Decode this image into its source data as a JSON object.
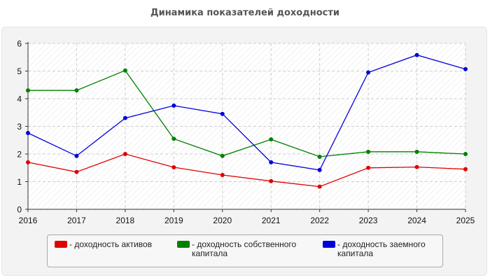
{
  "chart_data": {
    "type": "line",
    "title": "Динамика показателей доходности",
    "xlabel": "",
    "ylabel": "",
    "categories": [
      "2016",
      "2017",
      "2018",
      "2019",
      "2020",
      "2021",
      "2022",
      "2023",
      "2024",
      "2025"
    ],
    "ylim": [
      0,
      6
    ],
    "yticks": [
      "0",
      "1",
      "2",
      "3",
      "4",
      "5",
      "6"
    ],
    "grid": true,
    "legend_position": "bottom",
    "series": [
      {
        "name": "- доходность активов",
        "color": "#e00000",
        "values": [
          1.7,
          1.35,
          2.0,
          1.52,
          1.24,
          1.02,
          0.82,
          1.5,
          1.53,
          1.45
        ]
      },
      {
        "name": "- доходность собственного\nкапитала",
        "color": "#008000",
        "values": [
          4.3,
          4.3,
          5.02,
          2.55,
          1.93,
          2.53,
          1.9,
          2.08,
          2.08,
          2.0
        ]
      },
      {
        "name": "- доходность заемного\nкапитала",
        "color": "#0000dd",
        "values": [
          2.76,
          1.93,
          3.3,
          3.75,
          3.45,
          1.7,
          1.42,
          4.95,
          5.58,
          5.07
        ]
      }
    ]
  }
}
